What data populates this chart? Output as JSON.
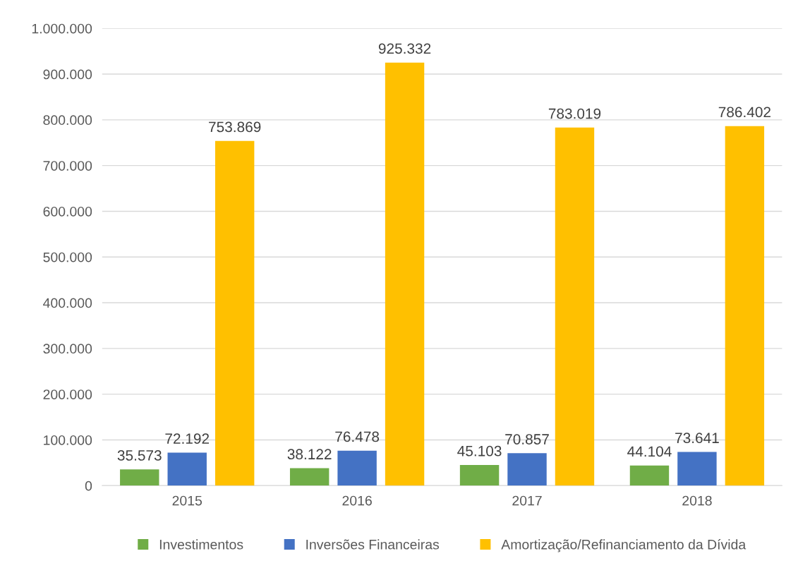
{
  "chart_data": {
    "type": "bar",
    "categories": [
      "2015",
      "2016",
      "2017",
      "2018"
    ],
    "series": [
      {
        "name": "Investimentos",
        "color": "#70ad47",
        "values": [
          35573,
          38122,
          45103,
          44104
        ],
        "value_labels": [
          "35.573",
          "38.122",
          "45.103",
          "44.104"
        ]
      },
      {
        "name": "Inversões Financeiras",
        "color": "#4472c4",
        "values": [
          72192,
          76478,
          70857,
          73641
        ],
        "value_labels": [
          "72.192",
          "76.478",
          "70.857",
          "73.641"
        ]
      },
      {
        "name": "Amortização/Refinanciamento da Dívida",
        "color": "#ffc000",
        "values": [
          753869,
          925332,
          783019,
          786402
        ],
        "value_labels": [
          "753.869",
          "925.332",
          "783.019",
          "786.402"
        ]
      }
    ],
    "ylim": [
      0,
      1000000
    ],
    "yticks": [
      0,
      {
        "value": 100000,
        "label": "100.000"
      },
      {
        "value": 200000,
        "label": "200.000"
      },
      {
        "value": 300000,
        "label": "300.000"
      },
      {
        "value": 400000,
        "label": "400.000"
      },
      {
        "value": 500000,
        "label": "500.000"
      },
      {
        "value": 600000,
        "label": "600.000"
      },
      {
        "value": 700000,
        "label": "700.000"
      },
      {
        "value": 800000,
        "label": "800.000"
      },
      {
        "value": 900000,
        "label": "900.000"
      },
      {
        "value": 1000000,
        "label": "1.000.000"
      }
    ],
    "grid": "y",
    "legend": "bottom"
  }
}
